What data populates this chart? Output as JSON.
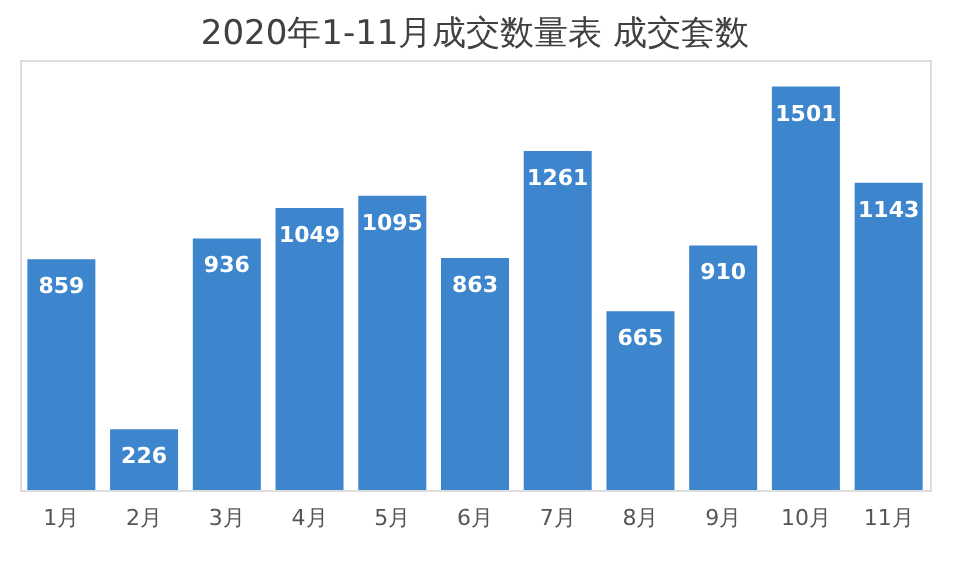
{
  "chart_data": {
    "type": "bar",
    "title": "2020年1-11月成交数量表 成交套数",
    "categories": [
      "1月",
      "2月",
      "3月",
      "4月",
      "5月",
      "6月",
      "7月",
      "8月",
      "9月",
      "10月",
      "11月"
    ],
    "values": [
      859,
      226,
      936,
      1049,
      1095,
      863,
      1261,
      665,
      910,
      1501,
      1143
    ],
    "color": "#3d85cc",
    "data_labels": true,
    "tick_labels": "x",
    "grid": false
  }
}
